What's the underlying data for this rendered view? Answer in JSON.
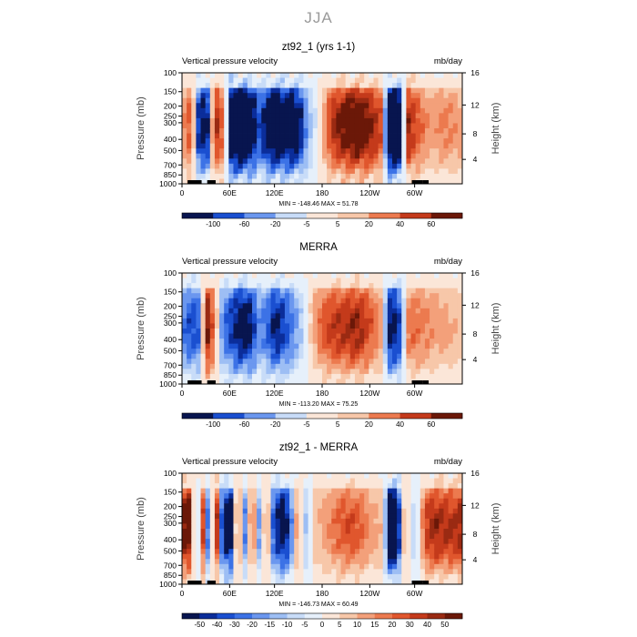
{
  "page": {
    "title": "JJA"
  },
  "colormap": [
    "#08154f",
    "#0b2d9a",
    "#1a4fd0",
    "#3c72e6",
    "#6b97ef",
    "#9dbef4",
    "#c8dcf8",
    "#e6f0fb",
    "#fbe6d8",
    "#f7c7a9",
    "#f3a07a",
    "#ec7a4f",
    "#e0562d",
    "#c43a1b",
    "#9a2a12",
    "#6b1808"
  ],
  "chart_data": [
    {
      "type": "heatmap",
      "title": "zt92_1 (yrs 1-1)",
      "left_label": "Vertical pressure velocity",
      "right_label": "mb/day",
      "ylabel": "Pressure (mb)",
      "y2label": "Height (km)",
      "xticks": [
        "0",
        "60E",
        "120E",
        "180",
        "120W",
        "60W"
      ],
      "yticks": [
        "100",
        "150",
        "200",
        "250",
        "300",
        "400",
        "500",
        "700",
        "850",
        "1000"
      ],
      "y2ticks": [
        "16",
        "12",
        "8",
        "4"
      ],
      "stats": "MIN = -148.46   MAX =  51.78",
      "colorbar_labels": [
        "-100",
        "-60",
        "-20",
        "-5",
        "5",
        "20",
        "40",
        "60"
      ],
      "profile": [
        [
          0,
          0.3
        ],
        [
          12,
          0.6
        ],
        [
          22,
          -0.9
        ],
        [
          32,
          -1.0
        ],
        [
          42,
          0.8
        ],
        [
          55,
          0.4
        ],
        [
          62,
          -1.3
        ],
        [
          75,
          -1.5
        ],
        [
          88,
          -1.2
        ],
        [
          100,
          -0.6
        ],
        [
          108,
          -1.0
        ],
        [
          120,
          -1.3
        ],
        [
          130,
          -1.1
        ],
        [
          140,
          -1.2
        ],
        [
          150,
          -1.0
        ],
        [
          160,
          -0.4
        ],
        [
          172,
          -0.1
        ],
        [
          180,
          0.2
        ],
        [
          192,
          0.7
        ],
        [
          210,
          1.0
        ],
        [
          225,
          1.1
        ],
        [
          240,
          0.9
        ],
        [
          255,
          0.6
        ],
        [
          268,
          -1.6
        ],
        [
          278,
          -1.3
        ],
        [
          290,
          0.8
        ],
        [
          305,
          0.5
        ],
        [
          320,
          0.3
        ],
        [
          340,
          0.4
        ],
        [
          360,
          0.3
        ]
      ]
    },
    {
      "type": "heatmap",
      "title": "MERRA",
      "left_label": "Vertical pressure velocity",
      "right_label": "mb/day",
      "ylabel": "Pressure (mb)",
      "y2label": "Height (km)",
      "xticks": [
        "0",
        "60E",
        "120E",
        "180",
        "120W",
        "60W"
      ],
      "yticks": [
        "100",
        "150",
        "200",
        "250",
        "300",
        "400",
        "500",
        "700",
        "850",
        "1000"
      ],
      "y2ticks": [
        "16",
        "12",
        "8",
        "4"
      ],
      "stats": "MIN = -113.20   MAX =  75.25",
      "colorbar_labels": [
        "-100",
        "-60",
        "-20",
        "-5",
        "5",
        "20",
        "40",
        "60"
      ],
      "profile": [
        [
          0,
          -0.5
        ],
        [
          12,
          -0.7
        ],
        [
          22,
          -0.6
        ],
        [
          32,
          0.9
        ],
        [
          42,
          0.4
        ],
        [
          52,
          -0.5
        ],
        [
          62,
          -0.7
        ],
        [
          75,
          -1.0
        ],
        [
          88,
          -0.9
        ],
        [
          100,
          -0.4
        ],
        [
          110,
          -0.6
        ],
        [
          120,
          -0.9
        ],
        [
          132,
          -0.7
        ],
        [
          142,
          -0.5
        ],
        [
          155,
          -0.2
        ],
        [
          170,
          0.3
        ],
        [
          185,
          0.6
        ],
        [
          205,
          0.7
        ],
        [
          225,
          0.8
        ],
        [
          240,
          0.6
        ],
        [
          255,
          0.3
        ],
        [
          268,
          -1.0
        ],
        [
          278,
          -0.8
        ],
        [
          292,
          0.5
        ],
        [
          310,
          0.4
        ],
        [
          330,
          0.3
        ],
        [
          360,
          0.2
        ]
      ]
    },
    {
      "type": "heatmap",
      "title": "zt92_1 - MERRA",
      "left_label": "Vertical pressure velocity",
      "right_label": "mb/day",
      "ylabel": "Pressure (mb)",
      "y2label": "Height (km)",
      "xticks": [
        "0",
        "60E",
        "120E",
        "180",
        "120W",
        "60W"
      ],
      "yticks": [
        "100",
        "150",
        "200",
        "250",
        "300",
        "400",
        "500",
        "700",
        "850",
        "1000"
      ],
      "y2ticks": [
        "16",
        "12",
        "8",
        "4"
      ],
      "stats": "MIN = -146.73   MAX =  60.49",
      "colorbar_labels": [
        "-50",
        "-40",
        "-30",
        "-20",
        "-15",
        "-10",
        "-5",
        "0",
        "5",
        "10",
        "15",
        "20",
        "30",
        "40",
        "50"
      ],
      "profile": [
        [
          0,
          0.9
        ],
        [
          10,
          1.0
        ],
        [
          18,
          -0.6
        ],
        [
          26,
          0.8
        ],
        [
          34,
          -0.7
        ],
        [
          44,
          0.9
        ],
        [
          52,
          -0.8
        ],
        [
          62,
          -1.2
        ],
        [
          72,
          0.7
        ],
        [
          80,
          -0.6
        ],
        [
          90,
          0.6
        ],
        [
          100,
          -0.5
        ],
        [
          108,
          0.5
        ],
        [
          118,
          -0.7
        ],
        [
          128,
          -1.0
        ],
        [
          138,
          -0.8
        ],
        [
          148,
          0.4
        ],
        [
          158,
          -0.3
        ],
        [
          170,
          0.2
        ],
        [
          185,
          0.3
        ],
        [
          200,
          0.5
        ],
        [
          215,
          0.6
        ],
        [
          230,
          0.5
        ],
        [
          245,
          0.3
        ],
        [
          258,
          0.2
        ],
        [
          268,
          -1.4
        ],
        [
          276,
          -1.2
        ],
        [
          286,
          0.3
        ],
        [
          300,
          -0.3
        ],
        [
          312,
          0.6
        ],
        [
          324,
          0.8
        ],
        [
          340,
          0.7
        ],
        [
          360,
          0.8
        ]
      ]
    }
  ]
}
